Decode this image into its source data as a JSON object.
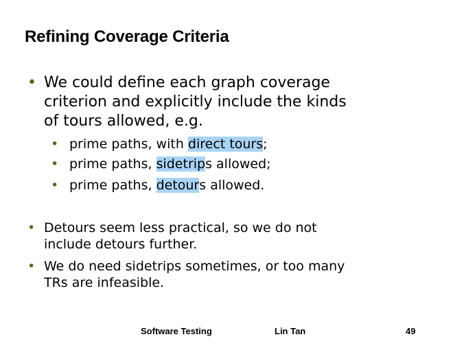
{
  "slide": {
    "title": "Refining Coverage Criteria",
    "bullet1": {
      "line1": "We could define each graph coverage",
      "line2": "criterion and explicitly include the kinds",
      "line3": "of tours allowed, e.g."
    },
    "subbullets": [
      {
        "pre": "prime paths, with ",
        "hl": "direct tours",
        "post": ";"
      },
      {
        "pre": "prime paths, ",
        "hl": "sidetrip",
        "post": "s allowed;"
      },
      {
        "pre": "prime paths, ",
        "hl": "detour",
        "post": "s allowed."
      }
    ],
    "bullet2": {
      "line1": "Detours seem less practical, so we do not",
      "line2": "include detours further."
    },
    "bullet3": {
      "line1": "We do need sidetrips sometimes, or too many",
      "line2": "TRs are infeasible."
    },
    "bullet_glyph": "•"
  },
  "footer": {
    "left": "Software Testing",
    "center": "Lin Tan",
    "page": "49"
  },
  "colors": {
    "highlight": "#a9d3f5",
    "bullet": "#4a6b1a"
  }
}
